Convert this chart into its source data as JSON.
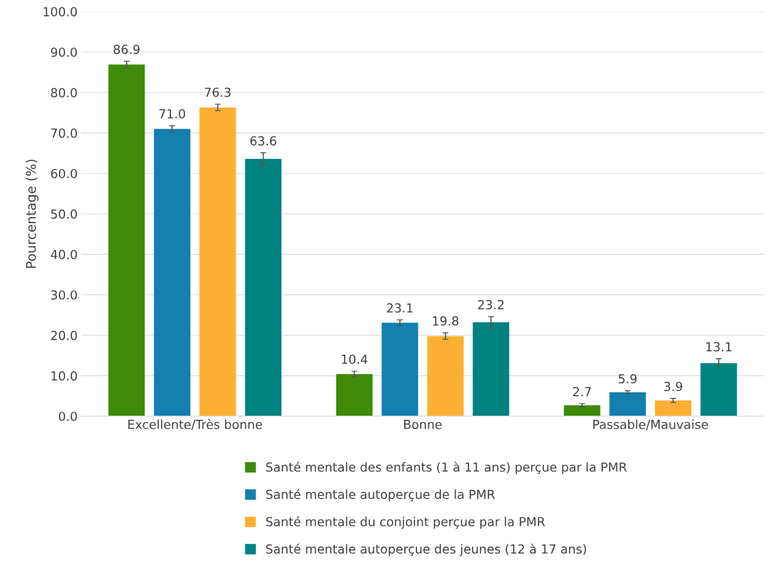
{
  "chart_data": {
    "type": "bar",
    "ylabel": "Pourcentage (%)",
    "categories": [
      "Excellente/Très bonne",
      "Bonne",
      "Passable/Mauvaise"
    ],
    "series": [
      {
        "name": "Santé mentale des enfants (1 à 11 ans) perçue par la PMR",
        "color": "#3f8a06",
        "values": [
          86.9,
          10.4,
          2.7
        ],
        "errors": [
          0.8,
          0.7,
          0.4
        ]
      },
      {
        "name": "Santé mentale autoperçue de la PMR",
        "color": "#1380ad",
        "values": [
          71.0,
          23.1,
          5.9
        ],
        "errors": [
          0.8,
          0.7,
          0.4
        ]
      },
      {
        "name": "Santé mentale du conjoint perçue par la PMR",
        "color": "#fbb034",
        "values": [
          76.3,
          19.8,
          3.9
        ],
        "errors": [
          0.8,
          0.8,
          0.5
        ]
      },
      {
        "name": "Santé mentale autoperçue des jeunes (12 à 17 ans)",
        "color": "#008281",
        "values": [
          63.6,
          23.2,
          13.1
        ],
        "errors": [
          1.5,
          1.4,
          1.1
        ]
      }
    ],
    "value_labels": [
      [
        "86.9",
        "10.4",
        "2.7"
      ],
      [
        "71.0",
        "23.1",
        "5.9"
      ],
      [
        "76.3",
        "19.8",
        "3.9"
      ],
      [
        "63.6",
        "23.2",
        "13.1"
      ]
    ],
    "ylim": [
      0,
      100
    ],
    "yticks": [
      {
        "value": 0,
        "label": "0.0"
      },
      {
        "value": 10,
        "label": "10.0"
      },
      {
        "value": 20,
        "label": "20.0"
      },
      {
        "value": 30,
        "label": "30.0"
      },
      {
        "value": 40,
        "label": "40.0"
      },
      {
        "value": 50,
        "label": "50.0"
      },
      {
        "value": 60,
        "label": "60.0"
      },
      {
        "value": 70,
        "label": "70.0"
      },
      {
        "value": 80,
        "label": "80.0"
      },
      {
        "value": 90,
        "label": "90.0"
      },
      {
        "value": 100,
        "label": "100.0"
      }
    ],
    "grid": "y",
    "legend": "bottom"
  }
}
